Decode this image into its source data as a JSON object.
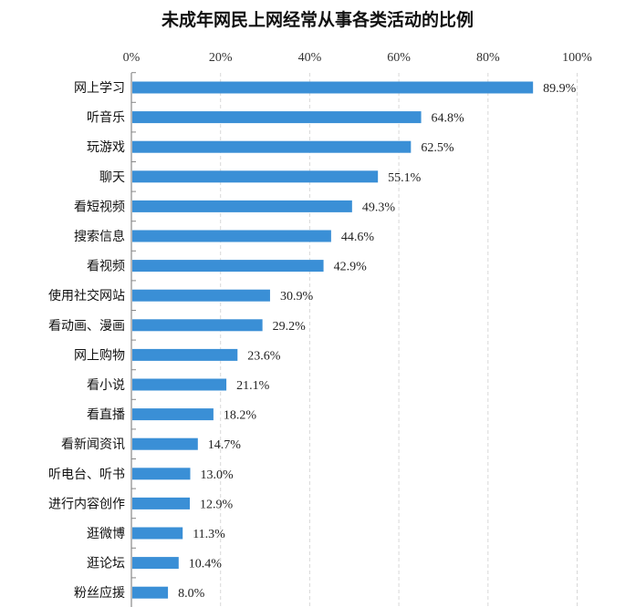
{
  "chart_data": {
    "type": "bar",
    "orientation": "horizontal",
    "title": "未成年网民上网经常从事各类活动的比例",
    "xlabel": "",
    "ylabel": "",
    "xlim": [
      0,
      100
    ],
    "x_ticks": [
      "0%",
      "20%",
      "40%",
      "60%",
      "80%",
      "100%"
    ],
    "x_tick_values": [
      0,
      20,
      40,
      60,
      80,
      100
    ],
    "grid": "vertical dashed",
    "bar_color": "#3a8fd6",
    "categories": [
      "网上学习",
      "听音乐",
      "玩游戏",
      "聊天",
      "看短视频",
      "搜索信息",
      "看视频",
      "使用社交网站",
      "看动画、漫画",
      "网上购物",
      "看小说",
      "看直播",
      "看新闻资讯",
      "听电台、听书",
      "进行内容创作",
      "逛微博",
      "逛论坛",
      "粉丝应援"
    ],
    "values": [
      89.9,
      64.8,
      62.5,
      55.1,
      49.3,
      44.6,
      42.9,
      30.9,
      29.2,
      23.6,
      21.1,
      18.2,
      14.7,
      13.0,
      12.9,
      11.3,
      10.4,
      8.0
    ],
    "value_labels": [
      "89.9%",
      "64.8%",
      "62.5%",
      "55.1%",
      "49.3%",
      "44.6%",
      "42.9%",
      "30.9%",
      "29.2%",
      "23.6%",
      "21.1%",
      "18.2%",
      "14.7%",
      "13.0%",
      "12.9%",
      "11.3%",
      "10.4%",
      "8.0%"
    ]
  }
}
